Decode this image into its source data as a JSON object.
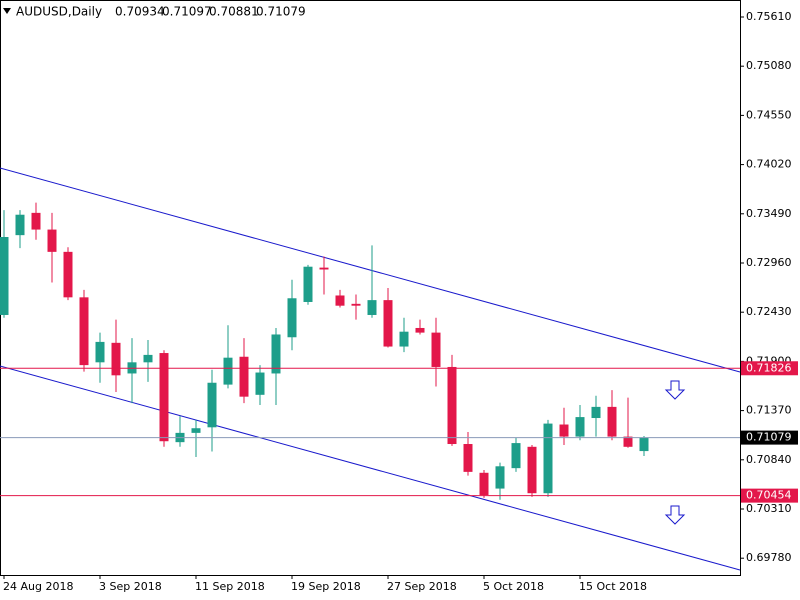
{
  "chart_data": {
    "type": "candlestick",
    "title": "AUDUSD,Daily",
    "categories": [
      "24 Aug 2018",
      null,
      null,
      null,
      null,
      null,
      "3 Sep 2018",
      null,
      null,
      null,
      null,
      null,
      "11 Sep 2018",
      null,
      null,
      null,
      null,
      null,
      "19 Sep 2018",
      null,
      null,
      null,
      null,
      null,
      "27 Sep 2018",
      null,
      null,
      null,
      null,
      null,
      "5 Oct 2018",
      null,
      null,
      null,
      null,
      null,
      "15 Oct 2018",
      null,
      null,
      null,
      null
    ],
    "open": [
      0.724,
      0.7326,
      0.735,
      0.7332,
      0.7308,
      0.7259,
      0.7189,
      0.721,
      0.7177,
      0.7189,
      0.7199,
      0.7103,
      0.7113,
      0.7119,
      0.7165,
      0.7195,
      0.7154,
      0.7177,
      0.7216,
      0.7254,
      0.7291,
      0.7261,
      0.7252,
      0.724,
      0.7256,
      0.7206,
      0.7226,
      0.7221,
      0.7184,
      0.7101,
      0.707,
      0.7053,
      0.7075,
      0.7098,
      0.7048,
      0.7122,
      0.7109,
      0.7129,
      0.7141,
      0.7109,
      0.70934
    ],
    "high": [
      0.7353,
      0.7353,
      0.7361,
      0.735,
      0.7313,
      0.7267,
      0.7221,
      0.7235,
      0.7215,
      0.7213,
      0.7202,
      0.7131,
      0.7127,
      0.7181,
      0.7229,
      0.7215,
      0.7186,
      0.7226,
      0.7278,
      0.7294,
      0.7303,
      0.7267,
      0.7262,
      0.7315,
      0.7269,
      0.7237,
      0.7235,
      0.7237,
      0.7197,
      0.7114,
      0.7073,
      0.7081,
      0.7108,
      0.71,
      0.7127,
      0.714,
      0.7143,
      0.7153,
      0.7159,
      0.7151,
      0.71097
    ],
    "low": [
      0.7237,
      0.7312,
      0.7321,
      0.7275,
      0.7256,
      0.7179,
      0.7167,
      0.7157,
      0.7145,
      0.7168,
      0.7098,
      0.7098,
      0.7087,
      0.7093,
      0.7161,
      0.7145,
      0.7143,
      0.7143,
      0.7202,
      0.7251,
      0.7262,
      0.7248,
      0.7235,
      0.7237,
      0.7205,
      0.72,
      0.7219,
      0.7163,
      0.7099,
      0.7067,
      0.7043,
      0.7041,
      0.7071,
      0.7044,
      0.7044,
      0.71,
      0.7105,
      0.7109,
      0.7105,
      0.7097,
      0.70881
    ],
    "close": [
      0.7324,
      0.7348,
      0.7332,
      0.7308,
      0.7259,
      0.7186,
      0.7211,
      0.7175,
      0.7189,
      0.7197,
      0.7104,
      0.7113,
      0.7118,
      0.7167,
      0.7194,
      0.7152,
      0.7178,
      0.7219,
      0.7258,
      0.7292,
      0.7289,
      0.725,
      0.725,
      0.7256,
      0.7206,
      0.7222,
      0.7221,
      0.7184,
      0.7101,
      0.7071,
      0.7046,
      0.7077,
      0.7102,
      0.7048,
      0.7123,
      0.7109,
      0.713,
      0.7141,
      0.7109,
      0.7098,
      0.71079
    ],
    "up_color": "#1e9e8a",
    "down_color": "#e3174a",
    "ylim": [
      0.69599,
      0.75793
    ],
    "yticks": [
      {
        "value": 0.7561,
        "label": "0.75610"
      },
      {
        "value": 0.7508,
        "label": "0.75080"
      },
      {
        "value": 0.7455,
        "label": "0.74550"
      },
      {
        "value": 0.7402,
        "label": "0.74020"
      },
      {
        "value": 0.7349,
        "label": "0.73490"
      },
      {
        "value": 0.7296,
        "label": "0.72960"
      },
      {
        "value": 0.7243,
        "label": "0.72430"
      },
      {
        "value": 0.719,
        "label": "0.71900"
      },
      {
        "value": 0.7137,
        "label": "0.71370"
      },
      {
        "value": 0.7084,
        "label": "0.70840"
      },
      {
        "value": 0.7031,
        "label": "0.70310"
      },
      {
        "value": 0.6978,
        "label": "0.69780"
      }
    ],
    "levels": [
      {
        "value": 0.71826,
        "color": "#e3174a"
      },
      {
        "value": 0.70454,
        "color": "#e3174a"
      }
    ],
    "last_price_color": "#8a9ab8"
  }
}
